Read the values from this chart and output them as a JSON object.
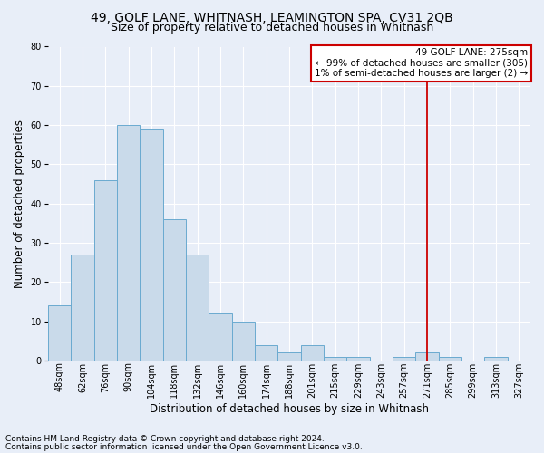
{
  "title1": "49, GOLF LANE, WHITNASH, LEAMINGTON SPA, CV31 2QB",
  "title2": "Size of property relative to detached houses in Whitnash",
  "xlabel": "Distribution of detached houses by size in Whitnash",
  "ylabel": "Number of detached properties",
  "footer1": "Contains HM Land Registry data © Crown copyright and database right 2024.",
  "footer2": "Contains public sector information licensed under the Open Government Licence v3.0.",
  "bin_labels": [
    "48sqm",
    "62sqm",
    "76sqm",
    "90sqm",
    "104sqm",
    "118sqm",
    "132sqm",
    "146sqm",
    "160sqm",
    "174sqm",
    "188sqm",
    "201sqm",
    "215sqm",
    "229sqm",
    "243sqm",
    "257sqm",
    "271sqm",
    "285sqm",
    "299sqm",
    "313sqm",
    "327sqm"
  ],
  "bar_heights": [
    14,
    27,
    46,
    60,
    59,
    36,
    27,
    12,
    10,
    4,
    2,
    4,
    1,
    1,
    0,
    1,
    2,
    1,
    0,
    1,
    0
  ],
  "bar_color": "#c9daea",
  "bar_edge_color": "#6aaad0",
  "bar_width": 1.0,
  "vline_x": 16,
  "vline_color": "#cc0000",
  "annotation_text": "49 GOLF LANE: 275sqm\n← 99% of detached houses are smaller (305)\n1% of semi-detached houses are larger (2) →",
  "annotation_box_color": "#cc0000",
  "ylim": [
    0,
    80
  ],
  "yticks": [
    0,
    10,
    20,
    30,
    40,
    50,
    60,
    70,
    80
  ],
  "bg_color": "#e8eef8",
  "plot_bg_color": "#e8eef8",
  "grid_color": "#ffffff",
  "title1_fontsize": 10,
  "title2_fontsize": 9,
  "axis_label_fontsize": 8.5,
  "tick_fontsize": 7,
  "footer_fontsize": 6.5,
  "annotation_fontsize": 7.5
}
